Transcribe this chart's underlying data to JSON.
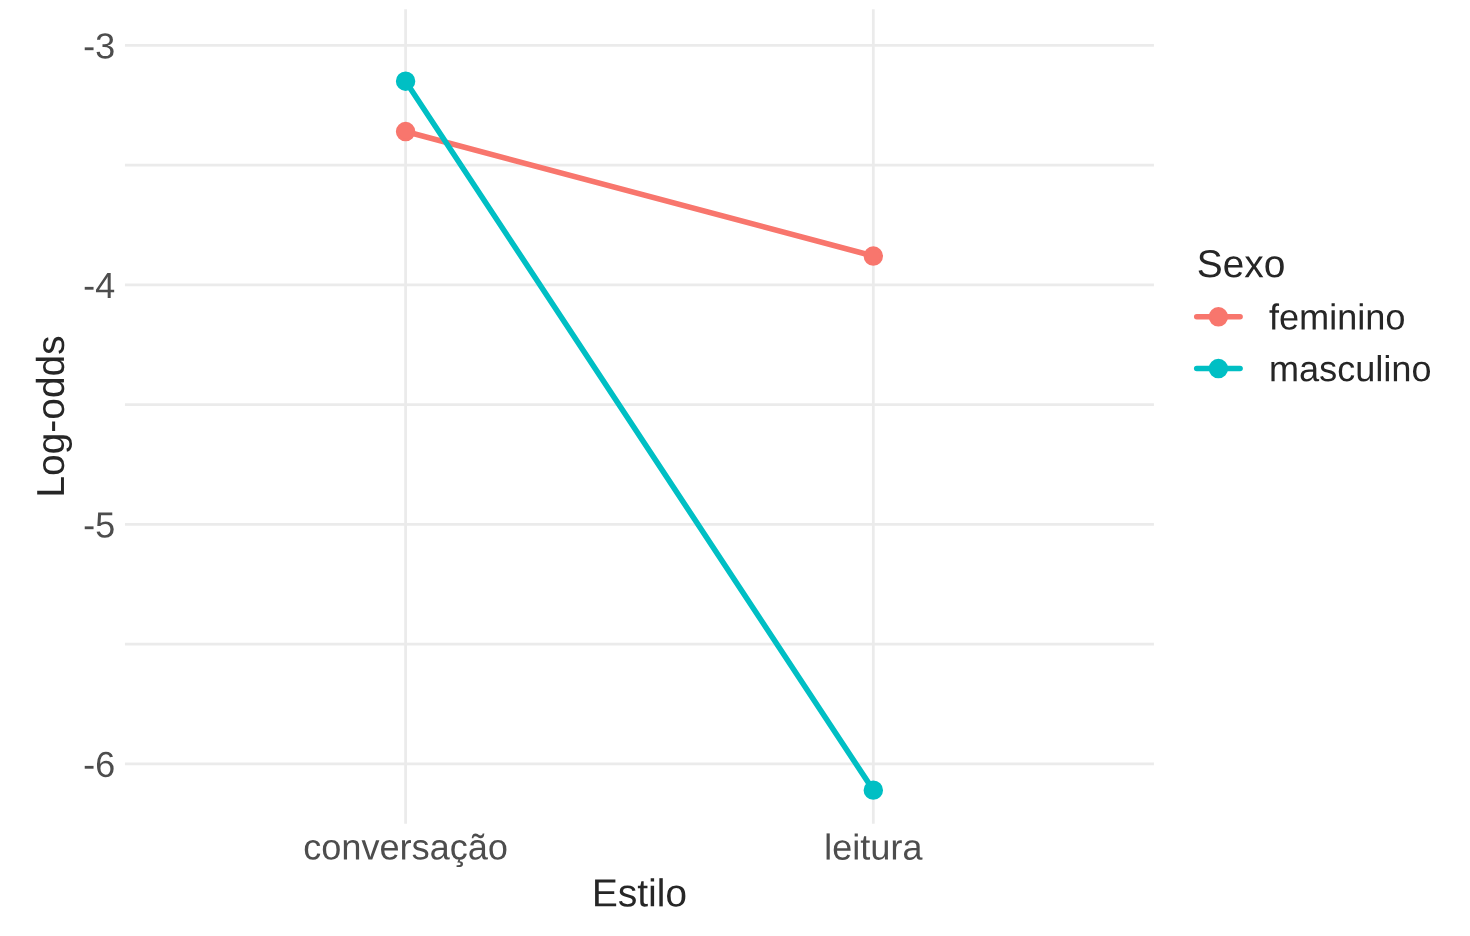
{
  "chart_data": {
    "type": "line",
    "xlabel": "Estilo",
    "ylabel": "Log-odds",
    "legend_title": "Sexo",
    "categories": [
      "conversação",
      "leitura"
    ],
    "series": [
      {
        "name": "feminino",
        "color": "#f8766d",
        "values": [
          -3.36,
          -3.88
        ]
      },
      {
        "name": "masculino",
        "color": "#00bfc4",
        "values": [
          -3.15,
          -6.11
        ]
      }
    ],
    "ylim": [
      -6.25,
      -2.85
    ],
    "yticks": [
      -6,
      {
        "value": -5.5,
        "label": null
      },
      -5,
      {
        "value": -4.5,
        "label": null
      },
      -4,
      {
        "value": -3.5,
        "label": null
      },
      -3
    ],
    "grid": true,
    "legend": "right",
    "marker": "circle",
    "line_style": "solid"
  }
}
